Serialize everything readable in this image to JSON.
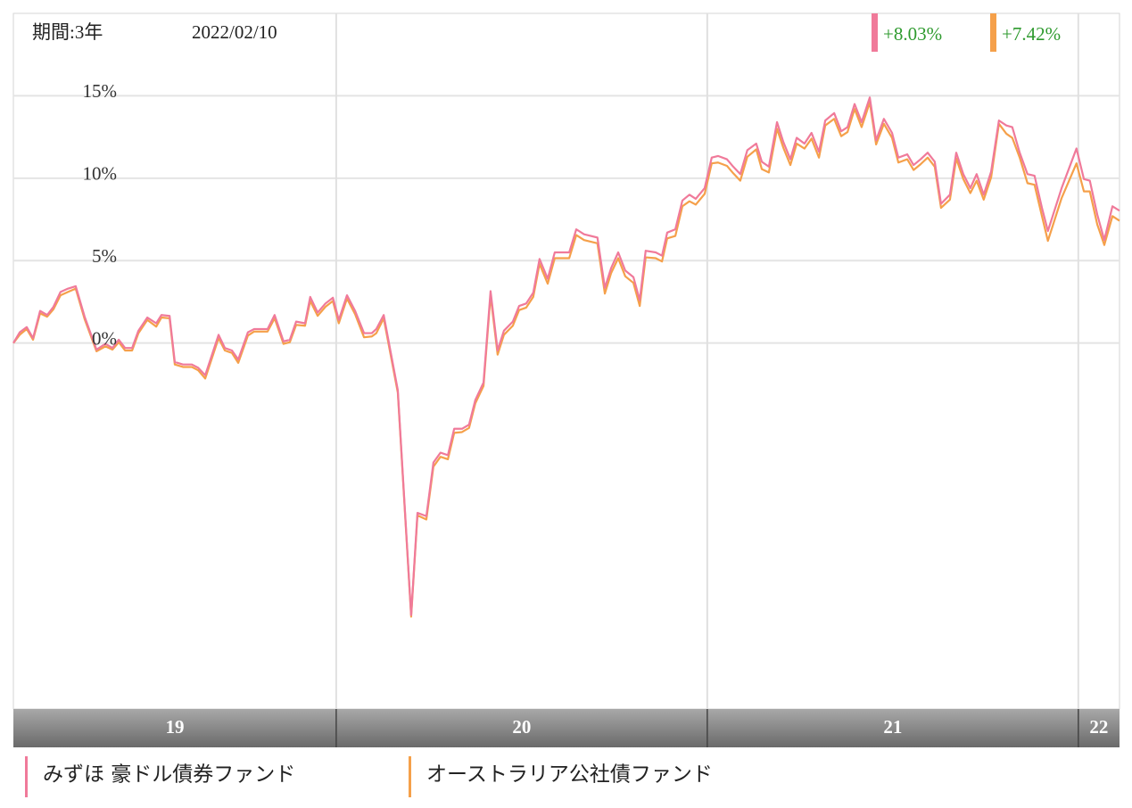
{
  "chart_data": {
    "type": "line",
    "period_label": "期間:3年",
    "date_label": "2022/02/10",
    "xlim": [
      2019.13,
      2022.111
    ],
    "xticks": [
      {
        "value": 2019,
        "label": "19"
      },
      {
        "value": 2020,
        "label": "20"
      },
      {
        "value": 2021,
        "label": "21"
      },
      {
        "value": 2022,
        "label": "22"
      }
    ],
    "ylim": [
      -22.2,
      20
    ],
    "yticks": [
      {
        "value": 0,
        "label": "0%"
      },
      {
        "value": 5,
        "label": "5%"
      },
      {
        "value": 10,
        "label": "10%"
      },
      {
        "value": 15,
        "label": "15%"
      }
    ],
    "grid": true,
    "x": [
      2019.13,
      2019.147,
      2019.166,
      2019.183,
      2019.202,
      2019.221,
      2019.238,
      2019.257,
      2019.277,
      2019.298,
      2019.322,
      2019.354,
      2019.378,
      2019.397,
      2019.414,
      2019.431,
      2019.45,
      2019.467,
      2019.491,
      2019.515,
      2019.529,
      2019.551,
      2019.565,
      2019.587,
      2019.611,
      2019.628,
      2019.647,
      2019.683,
      2019.7,
      2019.719,
      2019.736,
      2019.762,
      2019.779,
      2019.815,
      2019.834,
      2019.858,
      2019.875,
      2019.892,
      2019.916,
      2019.93,
      2019.95,
      2019.971,
      2019.991,
      2020.007,
      2020.029,
      2020.051,
      2020.075,
      2020.096,
      2020.108,
      2020.128,
      2020.166,
      2020.202,
      2020.219,
      2020.243,
      2020.262,
      2020.281,
      2020.301,
      2020.318,
      2020.339,
      2020.358,
      2020.375,
      2020.397,
      2020.416,
      2020.435,
      2020.452,
      2020.476,
      2020.493,
      2020.512,
      2020.531,
      2020.548,
      2020.57,
      2020.589,
      2020.608,
      2020.628,
      2020.647,
      2020.668,
      2020.704,
      2020.724,
      2020.741,
      2020.76,
      2020.779,
      2020.801,
      2020.818,
      2020.834,
      2020.861,
      2020.878,
      2020.892,
      2020.914,
      2020.933,
      2020.952,
      2020.969,
      2020.993,
      2021.012,
      2021.029,
      2021.053,
      2021.07,
      2021.089,
      2021.108,
      2021.132,
      2021.147,
      2021.166,
      2021.188,
      2021.205,
      2021.224,
      2021.241,
      2021.262,
      2021.281,
      2021.301,
      2021.318,
      2021.342,
      2021.361,
      2021.378,
      2021.397,
      2021.416,
      2021.438,
      2021.455,
      2021.476,
      2021.498,
      2021.515,
      2021.539,
      2021.556,
      2021.575,
      2021.594,
      2021.613,
      2021.63,
      2021.654,
      2021.671,
      2021.69,
      2021.709,
      2021.726,
      2021.745,
      2021.765,
      2021.786,
      2021.806,
      2021.822,
      2021.842,
      2021.863,
      2021.882,
      2021.902,
      2021.918,
      2021.955,
      2021.995,
      2022.015,
      2022.031,
      2022.051,
      2022.07,
      2022.092,
      2022.111
    ],
    "series": [
      {
        "name": "みずほ 豪ドル債券ファンド",
        "color": "#f07a9a",
        "return_label": "+8.03%",
        "values": [
          0,
          0.65,
          0.97,
          0.3,
          1.95,
          1.7,
          2.2,
          3.1,
          3.3,
          3.45,
          1.6,
          -0.4,
          -0.05,
          -0.3,
          0.2,
          -0.3,
          -0.3,
          0.75,
          1.55,
          1.2,
          1.7,
          1.65,
          -1.15,
          -1.3,
          -1.3,
          -1.5,
          -1.95,
          0.5,
          -0.3,
          -0.45,
          -1,
          0.65,
          0.85,
          0.85,
          1.7,
          0.1,
          0.2,
          1.3,
          1.2,
          2.8,
          1.85,
          2.4,
          2.75,
          1.4,
          2.9,
          1.95,
          0.6,
          0.6,
          0.85,
          1.7,
          -2.85,
          -16.5,
          -10.3,
          -10.5,
          -7.25,
          -6.65,
          -6.8,
          -5.2,
          -5.2,
          -4.95,
          -3.45,
          -2.4,
          3.15,
          -0.45,
          0.75,
          1.3,
          2.25,
          2.4,
          3.05,
          5.1,
          3.9,
          5.5,
          5.5,
          5.5,
          6.9,
          6.6,
          6.4,
          3.35,
          4.55,
          5.5,
          4.4,
          4.0,
          2.6,
          5.6,
          5.5,
          5.3,
          6.7,
          6.9,
          8.65,
          9.0,
          8.75,
          9.4,
          11.25,
          11.35,
          11.15,
          10.7,
          10.25,
          11.7,
          12.1,
          11.0,
          10.7,
          13.4,
          12.2,
          11.15,
          12.45,
          12.1,
          12.75,
          11.6,
          13.5,
          13.95,
          12.85,
          13.1,
          14.5,
          13.4,
          14.9,
          12.3,
          13.6,
          12.75,
          11.25,
          11.45,
          10.8,
          11.15,
          11.55,
          11.0,
          8.45,
          9.0,
          11.55,
          10.25,
          9.4,
          10.25,
          9.0,
          10.4,
          13.5,
          13.2,
          13.1,
          11.55,
          10.25,
          10.15,
          8.2,
          6.8,
          9.4,
          11.8,
          9.95,
          9.85,
          7.8,
          6.25,
          8.3,
          8.03
        ]
      },
      {
        "name": "オーストラリア公社債ファンド",
        "color": "#f5a04a",
        "return_label": "+7.42%",
        "values": [
          0,
          0.5,
          0.85,
          0.2,
          1.8,
          1.6,
          2.05,
          2.9,
          3.1,
          3.3,
          1.45,
          -0.5,
          -0.2,
          -0.4,
          0.05,
          -0.45,
          -0.45,
          0.6,
          1.4,
          1.0,
          1.55,
          1.5,
          -1.3,
          -1.45,
          -1.45,
          -1.65,
          -2.15,
          0.3,
          -0.45,
          -0.6,
          -1.2,
          0.45,
          0.7,
          0.7,
          1.5,
          -0.05,
          0.05,
          1.1,
          1.05,
          2.55,
          1.65,
          2.2,
          2.55,
          1.2,
          2.7,
          1.75,
          0.35,
          0.4,
          0.6,
          1.5,
          -3.0,
          -16.6,
          -10.45,
          -10.7,
          -7.5,
          -6.9,
          -7.05,
          -5.45,
          -5.4,
          -5.15,
          -3.65,
          -2.6,
          2.9,
          -0.7,
          0.5,
          1.05,
          2.0,
          2.15,
          2.8,
          4.8,
          3.6,
          5.15,
          5.15,
          5.15,
          6.55,
          6.25,
          6.05,
          3.0,
          4.25,
          5.15,
          4.05,
          3.65,
          2.25,
          5.2,
          5.15,
          4.95,
          6.35,
          6.5,
          8.3,
          8.6,
          8.4,
          9.05,
          10.9,
          10.95,
          10.75,
          10.3,
          9.85,
          11.3,
          11.75,
          10.55,
          10.35,
          13.0,
          11.85,
          10.8,
          12.1,
          11.8,
          12.4,
          11.25,
          13.2,
          13.6,
          12.55,
          12.8,
          14.2,
          13.1,
          14.6,
          12.05,
          13.3,
          12.45,
          10.95,
          11.15,
          10.5,
          10.85,
          11.25,
          10.7,
          8.2,
          8.7,
          11.2,
          9.95,
          9.1,
          9.85,
          8.7,
          10.05,
          13.3,
          12.7,
          12.45,
          11.25,
          9.7,
          9.6,
          7.7,
          6.2,
          8.8,
          10.9,
          9.2,
          9.2,
          7.2,
          5.95,
          7.7,
          7.42
        ]
      }
    ]
  }
}
